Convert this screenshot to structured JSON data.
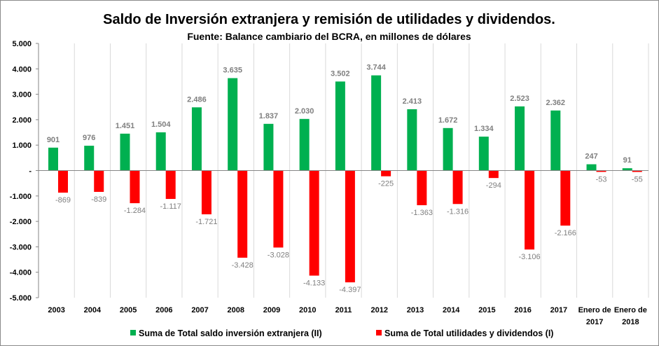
{
  "chart_data": {
    "type": "bar",
    "title": "Saldo de Inversión extranjera y remisión de utilidades y dividendos.",
    "subtitle": "Fuente: Balance cambiario del BCRA, en millones de dólares",
    "xlabel": "",
    "ylabel": "",
    "ylim": [
      -5000,
      5000
    ],
    "yticks": [
      5000,
      4000,
      3000,
      2000,
      1000,
      0,
      -1000,
      -2000,
      -3000,
      -4000,
      -5000
    ],
    "ytick_labels": [
      "5.000",
      "4.000",
      "3.000",
      "2.000",
      "1.000",
      "-",
      "-1.000",
      "-2.000",
      "-3.000",
      "-4.000",
      "-5.000"
    ],
    "grid": "vertical category separators",
    "legend_position": "bottom",
    "categories": [
      "2003",
      "2004",
      "2005",
      "2006",
      "2007",
      "2008",
      "2009",
      "2010",
      "2011",
      "2012",
      "2013",
      "2014",
      "2015",
      "2016",
      "2017",
      [
        "Enero de",
        "2017"
      ],
      [
        "Enero de",
        "2018"
      ]
    ],
    "series": [
      {
        "name": "Suma de Total saldo inversión extranjera (II)",
        "color": "#00b050",
        "values": [
          901,
          976,
          1451,
          1504,
          2486,
          3635,
          1837,
          2030,
          3502,
          3744,
          2413,
          1672,
          1334,
          2523,
          2362,
          247,
          91
        ],
        "labels": [
          "901",
          "976",
          "1.451",
          "1.504",
          "2.486",
          "3.635",
          "1.837",
          "2.030",
          "3.502",
          "3.744",
          "2.413",
          "1.672",
          "1.334",
          "2.523",
          "2.362",
          "247",
          "91"
        ]
      },
      {
        "name": "Suma de Total utilidades y dividendos (I)",
        "color": "#ff0000",
        "values": [
          -869,
          -839,
          -1284,
          -1117,
          -1721,
          -3428,
          -3028,
          -4133,
          -4397,
          -225,
          -1363,
          -1316,
          -294,
          -3106,
          -2166,
          -53,
          -55
        ],
        "labels": [
          "-869",
          "-839",
          "-1.284",
          "-1.117",
          "-1.721",
          "-3.428",
          "-3.028",
          "-4.133",
          "-4.397",
          "-225",
          "-1.363",
          "-1.316",
          "-294",
          "-3.106",
          "-2.166",
          "-53",
          "-55"
        ]
      }
    ]
  }
}
